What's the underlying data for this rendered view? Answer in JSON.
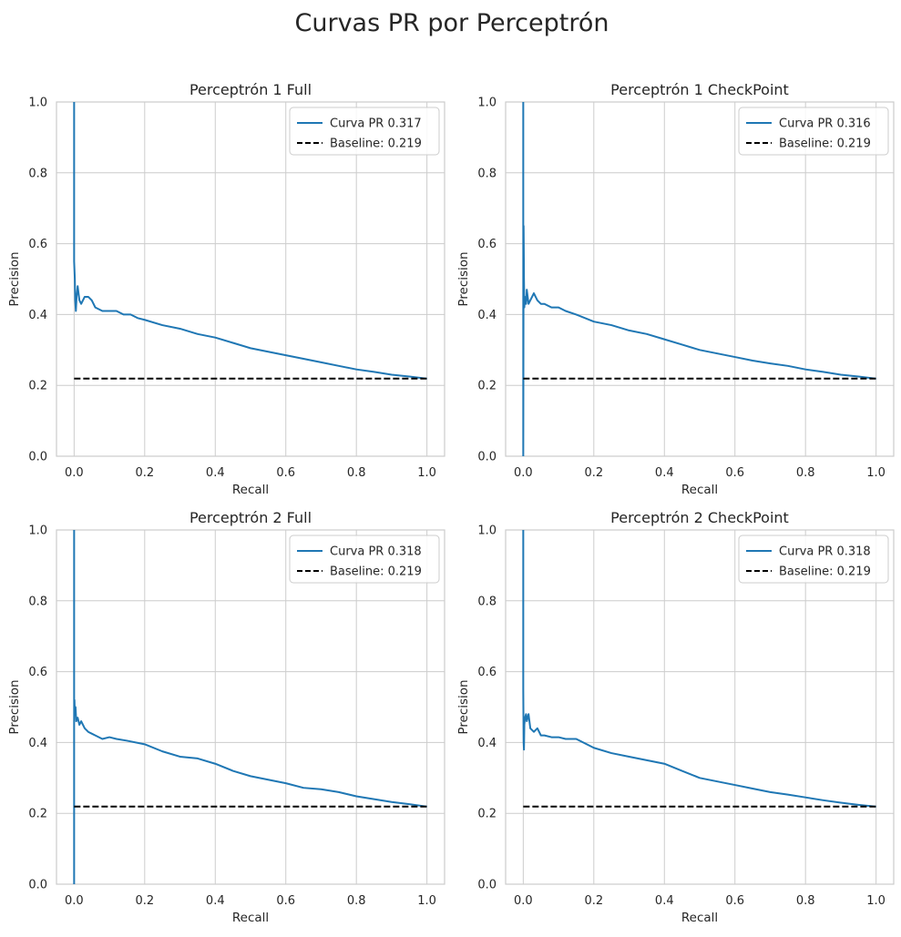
{
  "figure": {
    "suptitle": "Curvas PR por Perceptrón",
    "colors": {
      "curve": "#1f77b4",
      "baseline": "#000000",
      "grid": "#cccccc",
      "text": "#262626"
    }
  },
  "chart_data": [
    {
      "type": "line",
      "title": "Perceptrón 1 Full",
      "xlabel": "Recall",
      "ylabel": "Precision",
      "xlim": [
        -0.05,
        1.05
      ],
      "ylim": [
        0,
        1
      ],
      "xticks": [
        0.0,
        0.2,
        0.4,
        0.6,
        0.8,
        1.0
      ],
      "xtick_labels": [
        "0.0",
        "0.2",
        "0.4",
        "0.6",
        "0.8",
        "1.0"
      ],
      "yticks": [
        0.0,
        0.2,
        0.4,
        0.6,
        0.8,
        1.0
      ],
      "ytick_labels": [
        "0.0",
        "0.2",
        "0.4",
        "0.6",
        "0.8",
        "1.0"
      ],
      "grid": true,
      "legend_position": "upper right",
      "series": [
        {
          "name": "Curva PR 0.317",
          "style": "solid",
          "x": [
            0.0,
            0.0,
            0.0,
            0.0,
            0.002,
            0.003,
            0.005,
            0.007,
            0.01,
            0.015,
            0.02,
            0.03,
            0.04,
            0.05,
            0.06,
            0.08,
            0.1,
            0.12,
            0.14,
            0.16,
            0.18,
            0.2,
            0.25,
            0.3,
            0.35,
            0.4,
            0.45,
            0.5,
            0.55,
            0.6,
            0.65,
            0.7,
            0.75,
            0.8,
            0.85,
            0.9,
            0.95,
            1.0
          ],
          "y": [
            1.0,
            0.66,
            0.6,
            0.55,
            0.5,
            0.44,
            0.41,
            0.45,
            0.48,
            0.44,
            0.43,
            0.45,
            0.45,
            0.44,
            0.42,
            0.41,
            0.41,
            0.41,
            0.4,
            0.4,
            0.39,
            0.385,
            0.37,
            0.36,
            0.345,
            0.335,
            0.32,
            0.305,
            0.295,
            0.285,
            0.275,
            0.265,
            0.255,
            0.245,
            0.238,
            0.23,
            0.225,
            0.219
          ]
        },
        {
          "name": "Baseline: 0.219",
          "style": "dashed",
          "x": [
            0.0,
            1.0
          ],
          "y": [
            0.219,
            0.219
          ]
        }
      ]
    },
    {
      "type": "line",
      "title": "Perceptrón 1 CheckPoint",
      "xlabel": "Recall",
      "ylabel": "Precision",
      "xlim": [
        -0.05,
        1.05
      ],
      "ylim": [
        0,
        1
      ],
      "xticks": [
        0.0,
        0.2,
        0.4,
        0.6,
        0.8,
        1.0
      ],
      "xtick_labels": [
        "0.0",
        "0.2",
        "0.4",
        "0.6",
        "0.8",
        "1.0"
      ],
      "yticks": [
        0.0,
        0.2,
        0.4,
        0.6,
        0.8,
        1.0
      ],
      "ytick_labels": [
        "0.0",
        "0.2",
        "0.4",
        "0.6",
        "0.8",
        "1.0"
      ],
      "grid": true,
      "legend_position": "upper right",
      "series": [
        {
          "name": "Curva PR 0.316",
          "style": "solid",
          "x": [
            0.0,
            0.0,
            0.0,
            0.001,
            0.002,
            0.003,
            0.005,
            0.008,
            0.01,
            0.015,
            0.02,
            0.03,
            0.04,
            0.05,
            0.06,
            0.08,
            0.1,
            0.12,
            0.15,
            0.2,
            0.25,
            0.3,
            0.35,
            0.4,
            0.45,
            0.5,
            0.55,
            0.6,
            0.65,
            0.7,
            0.75,
            0.8,
            0.85,
            0.9,
            0.95,
            1.0
          ],
          "y": [
            0.0,
            1.0,
            0.0,
            0.65,
            0.5,
            0.42,
            0.45,
            0.43,
            0.47,
            0.43,
            0.44,
            0.46,
            0.44,
            0.43,
            0.43,
            0.42,
            0.42,
            0.41,
            0.4,
            0.38,
            0.37,
            0.355,
            0.345,
            0.33,
            0.315,
            0.3,
            0.29,
            0.28,
            0.27,
            0.262,
            0.255,
            0.245,
            0.238,
            0.23,
            0.225,
            0.219
          ]
        },
        {
          "name": "Baseline: 0.219",
          "style": "dashed",
          "x": [
            0.0,
            1.0
          ],
          "y": [
            0.219,
            0.219
          ]
        }
      ]
    },
    {
      "type": "line",
      "title": "Perceptrón 2 Full",
      "xlabel": "Recall",
      "ylabel": "Precision",
      "xlim": [
        -0.05,
        1.05
      ],
      "ylim": [
        0,
        1
      ],
      "xticks": [
        0.0,
        0.2,
        0.4,
        0.6,
        0.8,
        1.0
      ],
      "xtick_labels": [
        "0.0",
        "0.2",
        "0.4",
        "0.6",
        "0.8",
        "1.0"
      ],
      "yticks": [
        0.0,
        0.2,
        0.4,
        0.6,
        0.8,
        1.0
      ],
      "ytick_labels": [
        "0.0",
        "0.2",
        "0.4",
        "0.6",
        "0.8",
        "1.0"
      ],
      "grid": true,
      "legend_position": "upper right",
      "series": [
        {
          "name": "Curva PR 0.318",
          "style": "solid",
          "x": [
            0.0,
            0.0,
            0.0,
            0.0,
            0.001,
            0.002,
            0.004,
            0.006,
            0.01,
            0.015,
            0.02,
            0.03,
            0.04,
            0.05,
            0.06,
            0.08,
            0.1,
            0.12,
            0.15,
            0.2,
            0.25,
            0.3,
            0.35,
            0.4,
            0.45,
            0.5,
            0.55,
            0.6,
            0.65,
            0.7,
            0.75,
            0.8,
            0.85,
            0.9,
            0.95,
            1.0
          ],
          "y": [
            0.0,
            1.0,
            0.0,
            0.5,
            0.52,
            0.48,
            0.5,
            0.46,
            0.47,
            0.45,
            0.46,
            0.44,
            0.43,
            0.425,
            0.42,
            0.41,
            0.415,
            0.41,
            0.405,
            0.395,
            0.375,
            0.36,
            0.355,
            0.34,
            0.32,
            0.305,
            0.295,
            0.285,
            0.272,
            0.268,
            0.26,
            0.248,
            0.24,
            0.232,
            0.226,
            0.219
          ]
        },
        {
          "name": "Baseline: 0.219",
          "style": "dashed",
          "x": [
            0.0,
            1.0
          ],
          "y": [
            0.219,
            0.219
          ]
        }
      ]
    },
    {
      "type": "line",
      "title": "Perceptrón 2 CheckPoint",
      "xlabel": "Recall",
      "ylabel": "Precision",
      "xlim": [
        -0.05,
        1.05
      ],
      "ylim": [
        0,
        1
      ],
      "xticks": [
        0.0,
        0.2,
        0.4,
        0.6,
        0.8,
        1.0
      ],
      "xtick_labels": [
        "0.0",
        "0.2",
        "0.4",
        "0.6",
        "0.8",
        "1.0"
      ],
      "yticks": [
        0.0,
        0.2,
        0.4,
        0.6,
        0.8,
        1.0
      ],
      "ytick_labels": [
        "0.0",
        "0.2",
        "0.4",
        "0.6",
        "0.8",
        "1.0"
      ],
      "grid": true,
      "legend_position": "upper right",
      "series": [
        {
          "name": "Curva PR 0.318",
          "style": "solid",
          "x": [
            0.0,
            0.0,
            0.0,
            0.001,
            0.002,
            0.003,
            0.005,
            0.008,
            0.01,
            0.015,
            0.02,
            0.03,
            0.04,
            0.05,
            0.06,
            0.08,
            0.1,
            0.12,
            0.15,
            0.2,
            0.25,
            0.3,
            0.35,
            0.4,
            0.45,
            0.5,
            0.55,
            0.6,
            0.65,
            0.7,
            0.75,
            0.8,
            0.85,
            0.9,
            0.95,
            1.0
          ],
          "y": [
            1.0,
            0.69,
            0.55,
            0.4,
            0.38,
            0.45,
            0.47,
            0.48,
            0.46,
            0.48,
            0.44,
            0.43,
            0.44,
            0.42,
            0.42,
            0.415,
            0.415,
            0.41,
            0.41,
            0.385,
            0.37,
            0.36,
            0.35,
            0.34,
            0.32,
            0.3,
            0.29,
            0.28,
            0.27,
            0.26,
            0.253,
            0.245,
            0.237,
            0.23,
            0.224,
            0.219
          ]
        },
        {
          "name": "Baseline: 0.219",
          "style": "dashed",
          "x": [
            0.0,
            1.0
          ],
          "y": [
            0.219,
            0.219
          ]
        }
      ]
    }
  ]
}
